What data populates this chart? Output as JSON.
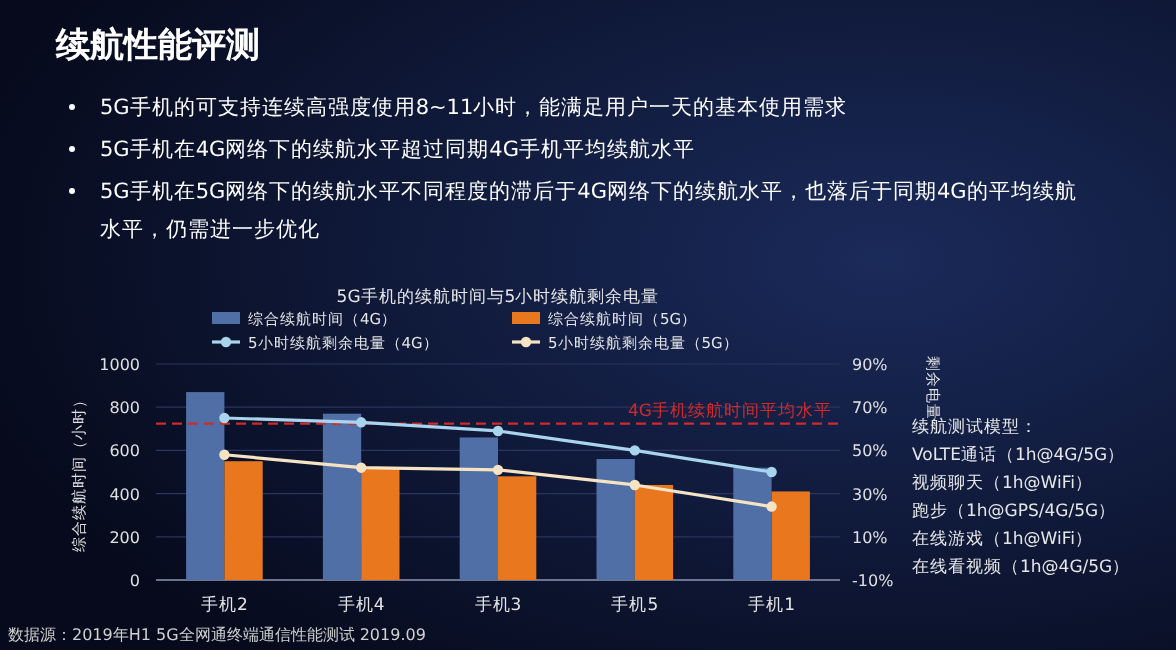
{
  "chart_data": {
    "type": "bar",
    "title": "5G手机的续航时间与5小时续航剩余电量",
    "ylabel": "综合续航时间（小时）",
    "y2label": "剩余电量",
    "categories": [
      "手机2",
      "手机4",
      "手机3",
      "手机5",
      "手机1"
    ],
    "series": [
      {
        "name": "综合续航时间（4G）",
        "color": "#4f6fa6",
        "values": [
          870,
          770,
          660,
          560,
          520
        ]
      },
      {
        "name": "综合续航时间（5G）",
        "color": "#e8771e",
        "values": [
          550,
          520,
          480,
          440,
          410
        ]
      },
      {
        "name": "5小时续航剩余电量（4G）",
        "type": "line",
        "axis": "y2",
        "color": "#a9d4ee",
        "values": [
          65,
          63,
          59,
          50,
          40
        ]
      },
      {
        "name": "5小时续航剩余电量（5G）",
        "type": "line",
        "axis": "y2",
        "color": "#f5e3c4",
        "values": [
          48,
          42,
          41,
          34,
          24
        ]
      }
    ],
    "ylim": [
      0,
      1000
    ],
    "yticks": [
      0,
      200,
      400,
      600,
      800,
      1000
    ],
    "y2lim": [
      -10,
      90
    ],
    "y2ticks": [
      {
        "value": -10,
        "label": "-10%"
      },
      {
        "value": 10,
        "label": "10%"
      },
      {
        "value": 30,
        "label": "30%"
      },
      {
        "value": 50,
        "label": "50%"
      },
      {
        "value": 70,
        "label": "70%"
      },
      {
        "value": 90,
        "label": "90%"
      }
    ],
    "ref_lines": [
      {
        "axis": "y",
        "value": 724,
        "label": "4G手机续航时间平均水平",
        "color": "#d02a2a",
        "line_style": "dashed"
      }
    ],
    "grid": "y",
    "legend": "top",
    "marker": "circle",
    "annotations": [
      "续航性能评测",
      "5G手机的可支持连续高强度使用8~11小时，能满足用户一天的基本使用需求",
      "5G手机在4G网络下的续航水平超过同期4G手机平均续航水平",
      "5G手机在5G网络下的续航水平不同程度的滞后于4G网络下的续航水平，也落后于同期4G的平均续航水平，仍需进一步优化",
      "续航测试模型：",
      "VoLTE通话（1h@4G/5G）",
      "视频聊天（1h@WiFi）",
      "跑步（1h@GPS/4G/5G）",
      "在线游戏（1h@WiFi）",
      "在线看视频（1h@4G/5G）",
      "数据源：2019年H1 5G全网通终端通信性能测试 2019.09"
    ]
  }
}
